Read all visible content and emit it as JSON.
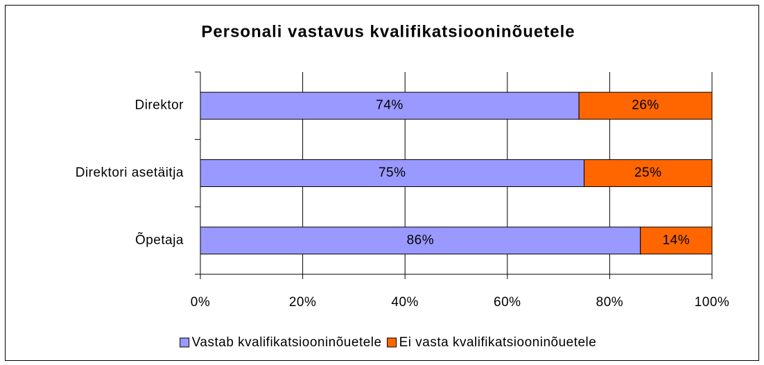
{
  "chart_data": {
    "type": "stacked-bar-horizontal",
    "title": "Personali vastavus kvalifikatsiooninõuetele",
    "categories": [
      "Direktor",
      "Direktori asetäitja",
      "Õpetaja"
    ],
    "series": [
      {
        "name": "Vastab kvalifikatsiooninõuetele",
        "color": "#9999ff",
        "values": [
          74,
          75,
          86
        ],
        "value_labels": [
          "74%",
          "75%",
          "86%"
        ]
      },
      {
        "name": "Ei vasta kvalifikatsiooninõuetele",
        "color": "#ff6600",
        "values": [
          26,
          25,
          14
        ],
        "value_labels": [
          "26%",
          "25%",
          "14%"
        ]
      }
    ],
    "xlim": [
      0,
      100
    ],
    "xticks": [
      {
        "value": 0,
        "label": "0%"
      },
      {
        "value": 20,
        "label": "20%"
      },
      {
        "value": 40,
        "label": "40%"
      },
      {
        "value": 60,
        "label": "60%"
      },
      {
        "value": 80,
        "label": "80%"
      },
      {
        "value": 100,
        "label": "100%"
      }
    ],
    "grid": true,
    "legend": "bottom"
  }
}
